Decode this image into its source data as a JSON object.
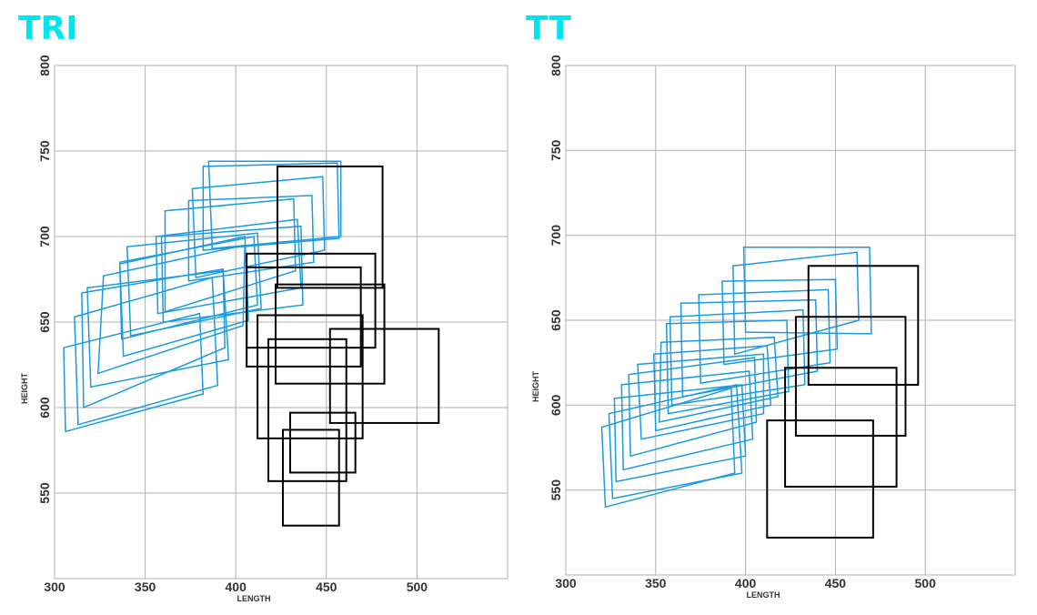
{
  "colors": {
    "title": "#00e5f0",
    "blue": "#1a9be0",
    "black": "#000000",
    "grid": "#b0b0b0"
  },
  "chart_data": [
    {
      "type": "scatter",
      "title": "TRI",
      "xlabel": "LENGTH",
      "ylabel": "HEIGHT",
      "xlim": [
        300,
        550
      ],
      "ylim": [
        500,
        800
      ],
      "xticks": [
        "300",
        "350",
        "400",
        "450",
        "500"
      ],
      "yticks": [
        "550",
        "600",
        "650",
        "700",
        "750",
        "800"
      ],
      "grid": true,
      "series": [
        {
          "color": "blue",
          "shape": "skewed-rectangle",
          "quads": [
            [
              [
                305,
                635
              ],
              [
                380,
                655
              ],
              [
                382,
                608
              ],
              [
                306,
                586
              ]
            ],
            [
              [
                311,
                653
              ],
              [
                387,
                676
              ],
              [
                390,
                613
              ],
              [
                313,
                590
              ]
            ],
            [
              [
                315,
                667
              ],
              [
                393,
                681
              ],
              [
                394,
                635
              ],
              [
                316,
                600
              ]
            ],
            [
              [
                318,
                670
              ],
              [
                393,
                680
              ],
              [
                396,
                628
              ],
              [
                320,
                612
              ]
            ],
            [
              [
                327,
                677
              ],
              [
                405,
                695
              ],
              [
                404,
                648
              ],
              [
                324,
                620
              ]
            ],
            [
              [
                336,
                684
              ],
              [
                405,
                700
              ],
              [
                407,
                651
              ],
              [
                338,
                630
              ]
            ],
            [
              [
                336,
                685
              ],
              [
                410,
                700
              ],
              [
                412,
                660
              ],
              [
                337,
                640
              ]
            ],
            [
              [
                340,
                694
              ],
              [
                412,
                702
              ],
              [
                414,
                658
              ],
              [
                342,
                642
              ]
            ],
            [
              [
                356,
                700
              ],
              [
                434,
                710
              ],
              [
                436,
                670
              ],
              [
                357,
                655
              ]
            ],
            [
              [
                359,
                700
              ],
              [
                436,
                706
              ],
              [
                437,
                660
              ],
              [
                360,
                650
              ]
            ],
            [
              [
                361,
                715
              ],
              [
                432,
                722
              ],
              [
                433,
                680
              ],
              [
                361,
                656
              ]
            ],
            [
              [
                374,
                721
              ],
              [
                442,
                724
              ],
              [
                443,
                685
              ],
              [
                374,
                674
              ]
            ],
            [
              [
                376,
                728
              ],
              [
                448,
                735
              ],
              [
                449,
                692
              ],
              [
                378,
                676
              ]
            ],
            [
              [
                382,
                741
              ],
              [
                456,
                743
              ],
              [
                457,
                699
              ],
              [
                382,
                692
              ]
            ],
            [
              [
                385,
                744
              ],
              [
                458,
                744
              ],
              [
                458,
                700
              ],
              [
                387,
                693
              ]
            ]
          ]
        },
        {
          "color": "black",
          "shape": "rectangle",
          "rects": [
            [
              [
                418,
                461
              ],
              [
                557,
                640
              ]
            ],
            [
              [
                426,
                457
              ],
              [
                531,
                587
              ]
            ],
            [
              [
                430,
                466
              ],
              [
                562,
                597
              ]
            ],
            [
              [
                452,
                512
              ],
              [
                591,
                646
              ]
            ],
            [
              [
                412,
                470
              ],
              [
                582,
                654
              ]
            ],
            [
              [
                422,
                482
              ],
              [
                614,
                672
              ]
            ],
            [
              [
                406,
                469
              ],
              [
                624,
                682
              ]
            ],
            [
              [
                406,
                477
              ],
              [
                635,
                690
              ]
            ],
            [
              [
                423,
                481
              ],
              [
                670,
                741
              ]
            ]
          ]
        }
      ]
    },
    {
      "type": "scatter",
      "title": "TT",
      "xlabel": "LENGTH",
      "ylabel": "HEIGHT",
      "xlim": [
        300,
        550
      ],
      "ylim": [
        500,
        800
      ],
      "xticks": [
        "300",
        "350",
        "400",
        "450",
        "500"
      ],
      "yticks": [
        "550",
        "600",
        "650",
        "700",
        "750",
        "800"
      ],
      "grid": true,
      "series": [
        {
          "color": "blue",
          "shape": "skewed-rectangle",
          "quads": [
            [
              [
                320,
                587
              ],
              [
                392,
                610
              ],
              [
                394,
                560
              ],
              [
                322,
                540
              ]
            ],
            [
              [
                324,
                595
              ],
              [
                395,
                612
              ],
              [
                398,
                560
              ],
              [
                326,
                545
              ]
            ],
            [
              [
                327,
                604
              ],
              [
                398,
                612
              ],
              [
                400,
                570
              ],
              [
                328,
                555
              ]
            ],
            [
              [
                331,
                612
              ],
              [
                402,
                620
              ],
              [
                404,
                580
              ],
              [
                332,
                562
              ]
            ],
            [
              [
                335,
                618
              ],
              [
                405,
                628
              ],
              [
                406,
                590
              ],
              [
                336,
                570
              ]
            ],
            [
              [
                340,
                624
              ],
              [
                410,
                630
              ],
              [
                410,
                595
              ],
              [
                342,
                580
              ]
            ],
            [
              [
                349,
                630
              ],
              [
                412,
                635
              ],
              [
                414,
                600
              ],
              [
                350,
                585
              ]
            ],
            [
              [
                353,
                637
              ],
              [
                416,
                640
              ],
              [
                418,
                605
              ],
              [
                352,
                590
              ]
            ],
            [
              [
                356,
                648
              ],
              [
                423,
                650
              ],
              [
                424,
                608
              ],
              [
                357,
                595
              ]
            ],
            [
              [
                358,
                652
              ],
              [
                432,
                656
              ],
              [
                433,
                612
              ],
              [
                359,
                600
              ]
            ],
            [
              [
                364,
                660
              ],
              [
                439,
                662
              ],
              [
                440,
                620
              ],
              [
                365,
                605
              ]
            ],
            [
              [
                374,
                665
              ],
              [
                446,
                668
              ],
              [
                447,
                625
              ],
              [
                375,
                613
              ]
            ],
            [
              [
                387,
                673
              ],
              [
                450,
                674
              ],
              [
                451,
                633
              ],
              [
                388,
                624
              ]
            ],
            [
              [
                393,
                682
              ],
              [
                462,
                690
              ],
              [
                463,
                650
              ],
              [
                394,
                630
              ]
            ],
            [
              [
                399,
                693
              ],
              [
                469,
                693
              ],
              [
                470,
                642
              ],
              [
                400,
                643
              ]
            ]
          ]
        },
        {
          "color": "black",
          "shape": "rectangle",
          "rects": [
            [
              [
                412,
                471
              ],
              [
                522,
                591
              ]
            ],
            [
              [
                422,
                484
              ],
              [
                552,
                622
              ]
            ],
            [
              [
                428,
                489
              ],
              [
                582,
                652
              ]
            ],
            [
              [
                435,
                496
              ],
              [
                612,
                682
              ]
            ]
          ]
        }
      ]
    }
  ]
}
